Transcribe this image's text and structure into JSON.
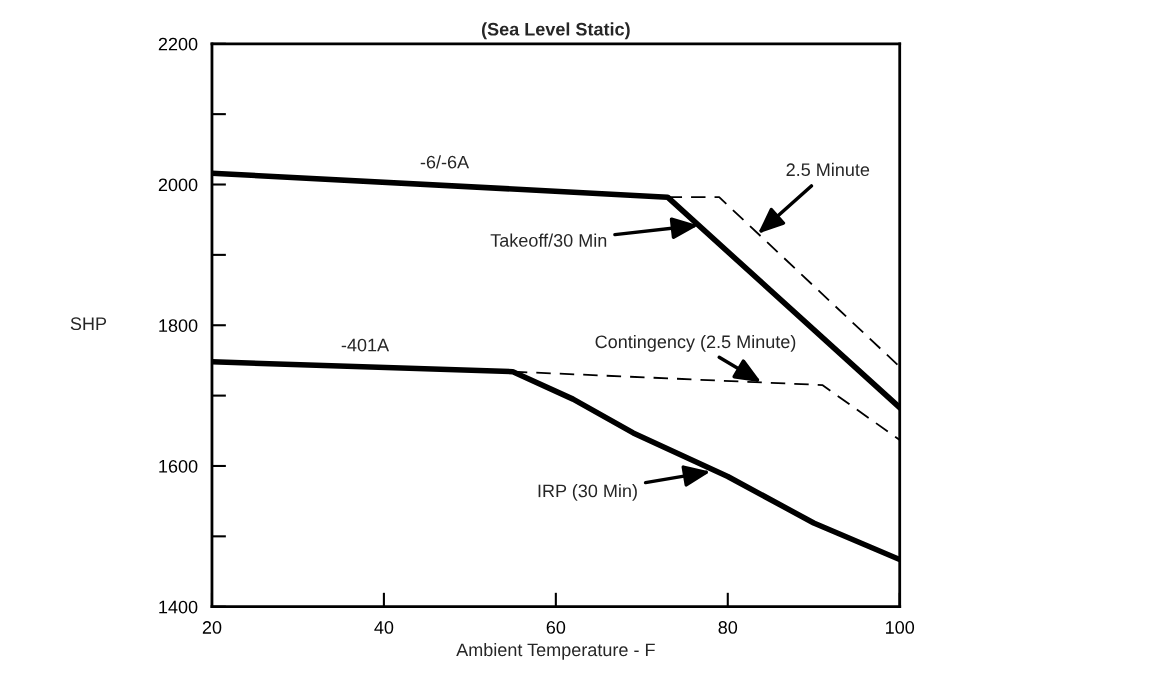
{
  "chart_data": {
    "type": "line",
    "title": "(Sea Level Static)",
    "xlabel": "Ambient Temperature - F",
    "ylabel": "SHP",
    "xlim": [
      20,
      100
    ],
    "ylim": [
      1400,
      2200
    ],
    "xticks": [
      20,
      40,
      60,
      80,
      100
    ],
    "yticks": [
      1400,
      {
        "value": 1500,
        "label": null
      },
      1600,
      {
        "value": 1700,
        "label": null
      },
      1800,
      {
        "value": 1900,
        "label": null
      },
      2000,
      {
        "value": 2100,
        "label": null
      },
      2200
    ],
    "grid": false,
    "marker": "none",
    "series": [
      {
        "color": "#000000",
        "line_style": "solid",
        "x": [
          20,
          73,
          100
        ],
        "values": [
          2016,
          1982,
          1683
        ]
      },
      {
        "color": "#000000",
        "line_style": "dashed",
        "x": [
          73,
          79,
          100
        ],
        "values": [
          1982,
          1982,
          1741
        ]
      },
      {
        "color": "#000000",
        "line_style": "solid",
        "x": [
          20,
          55,
          62,
          69,
          80,
          90,
          100
        ],
        "values": [
          1748,
          1734,
          1695,
          1647,
          1585,
          1519,
          1467
        ]
      },
      {
        "color": "#000000",
        "line_style": "dashed",
        "x": [
          55,
          91,
          100
        ],
        "values": [
          1734,
          1715,
          1637
        ]
      }
    ],
    "annotations": [
      {
        "text": "-6/-6A",
        "x": 45,
        "y": 2002
      },
      {
        "text": "Takeoff/30 Min",
        "x": 76.6,
        "y": 1942
      },
      {
        "text": "2.5 Minute",
        "x": 83.5,
        "y": 1930
      },
      {
        "text": "-401A",
        "x": 35,
        "y": 1742
      },
      {
        "text": "Contingency (2.5 Minute)",
        "x": 83.9,
        "y": 1719
      },
      {
        "text": "IRP (30 Min)",
        "x": 78,
        "y": 1592
      }
    ]
  }
}
